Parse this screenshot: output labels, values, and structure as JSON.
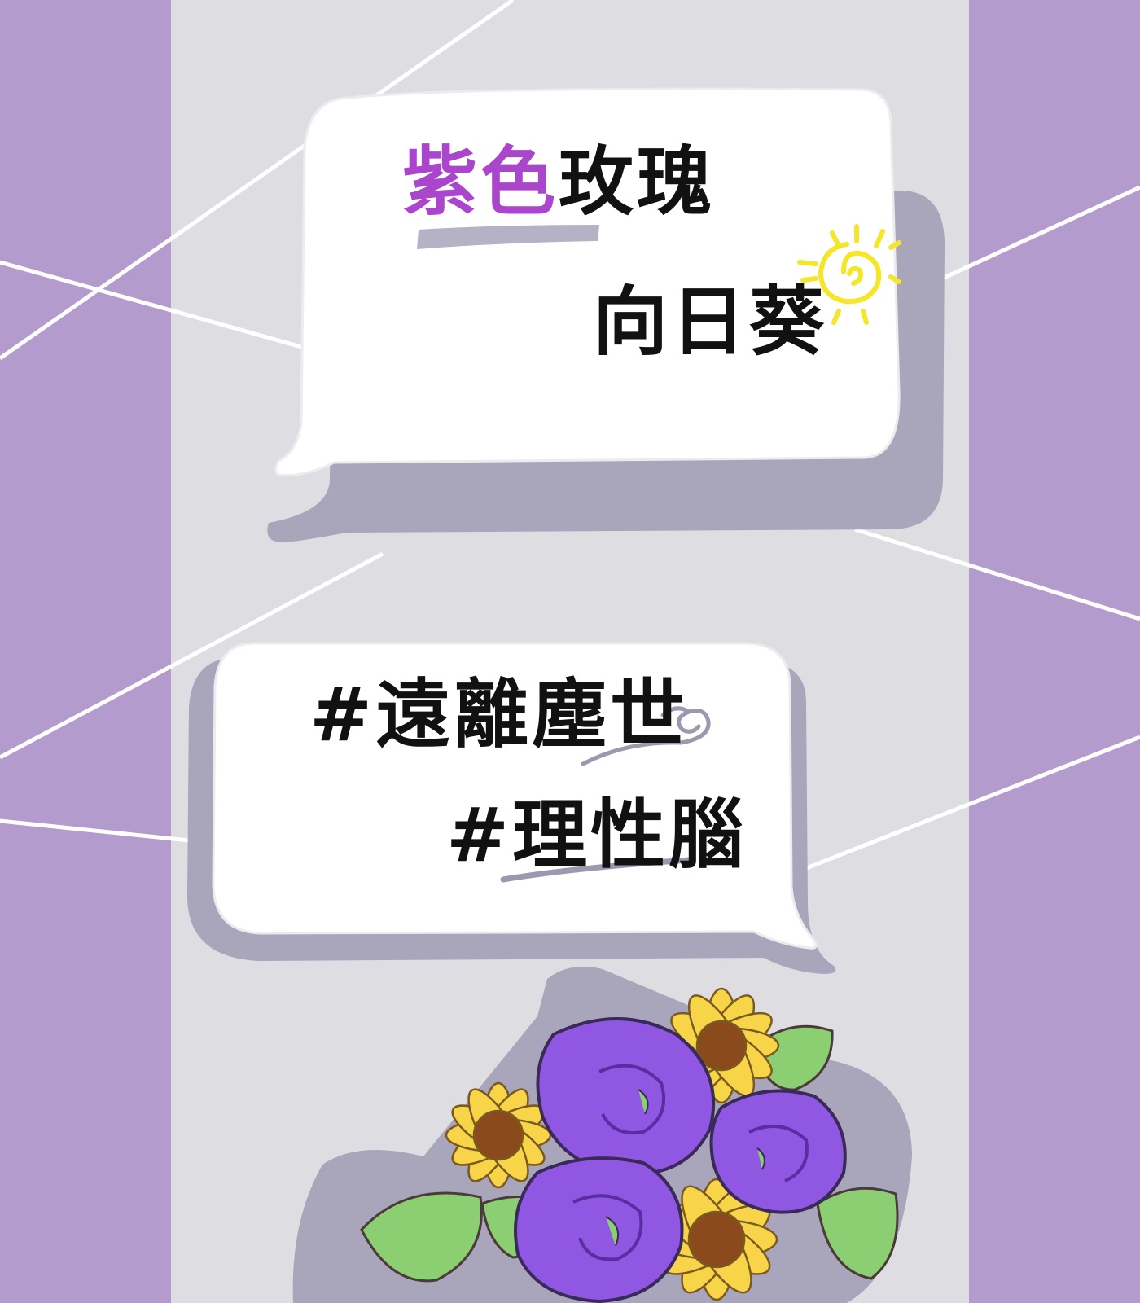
{
  "bubble_top": {
    "line1_highlight": "紫色",
    "line1_rest": "玫瑰",
    "line2": "向日葵"
  },
  "bubble_bottom": {
    "line1": "#遠離塵世",
    "line2": "#理性腦"
  },
  "colors": {
    "side_panels": "#b39ccd",
    "center_panel": "#dedee2",
    "bubble_shadow": "#a9a5bb",
    "bubble_fill": "#ffffff",
    "highlight_text": "#a946cc",
    "text": "#111111",
    "sun": "#f5e62a",
    "rose": "#9058e2",
    "sunflower_petal": "#f7d448",
    "sunflower_center": "#8a4a1c",
    "leaf": "#8ccf72"
  },
  "icons": [
    "sun-icon",
    "cloud-swirl-icon"
  ]
}
